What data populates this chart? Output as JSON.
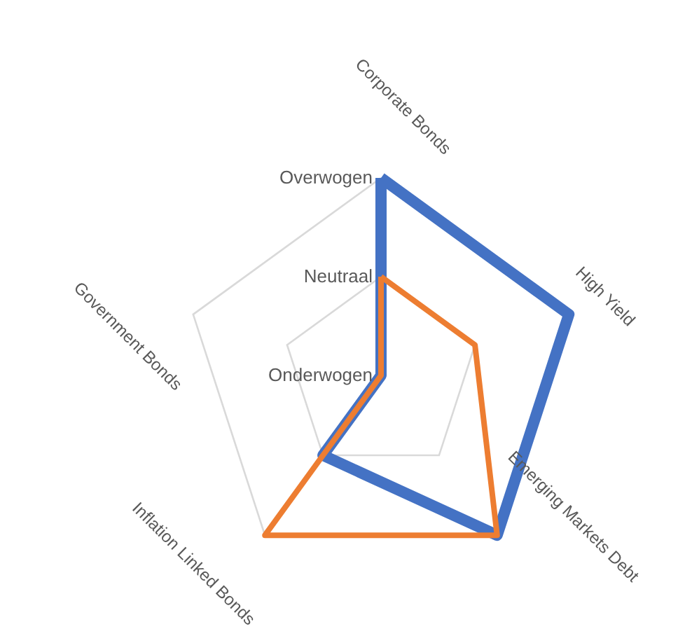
{
  "chart_data": {
    "type": "radar",
    "categories": [
      "Corporate Bonds",
      "High Yield",
      "Emerging Markets Debt",
      "Inflation Linked Bonds",
      "Government Bonds"
    ],
    "series": [
      {
        "color": "#4472c4",
        "values": [
          2,
          2,
          2,
          1,
          0
        ]
      },
      {
        "color": "#ed7d31",
        "values": [
          1,
          1,
          2,
          2,
          0
        ]
      }
    ],
    "ylim": [
      0,
      2
    ],
    "yticks": [
      {
        "value": 0,
        "label": "Onderwogen"
      },
      {
        "value": 1,
        "label": "Neutraal"
      },
      {
        "value": 2,
        "label": "Overwogen"
      }
    ],
    "grid": true,
    "marker": "none",
    "line_style": "solid"
  }
}
